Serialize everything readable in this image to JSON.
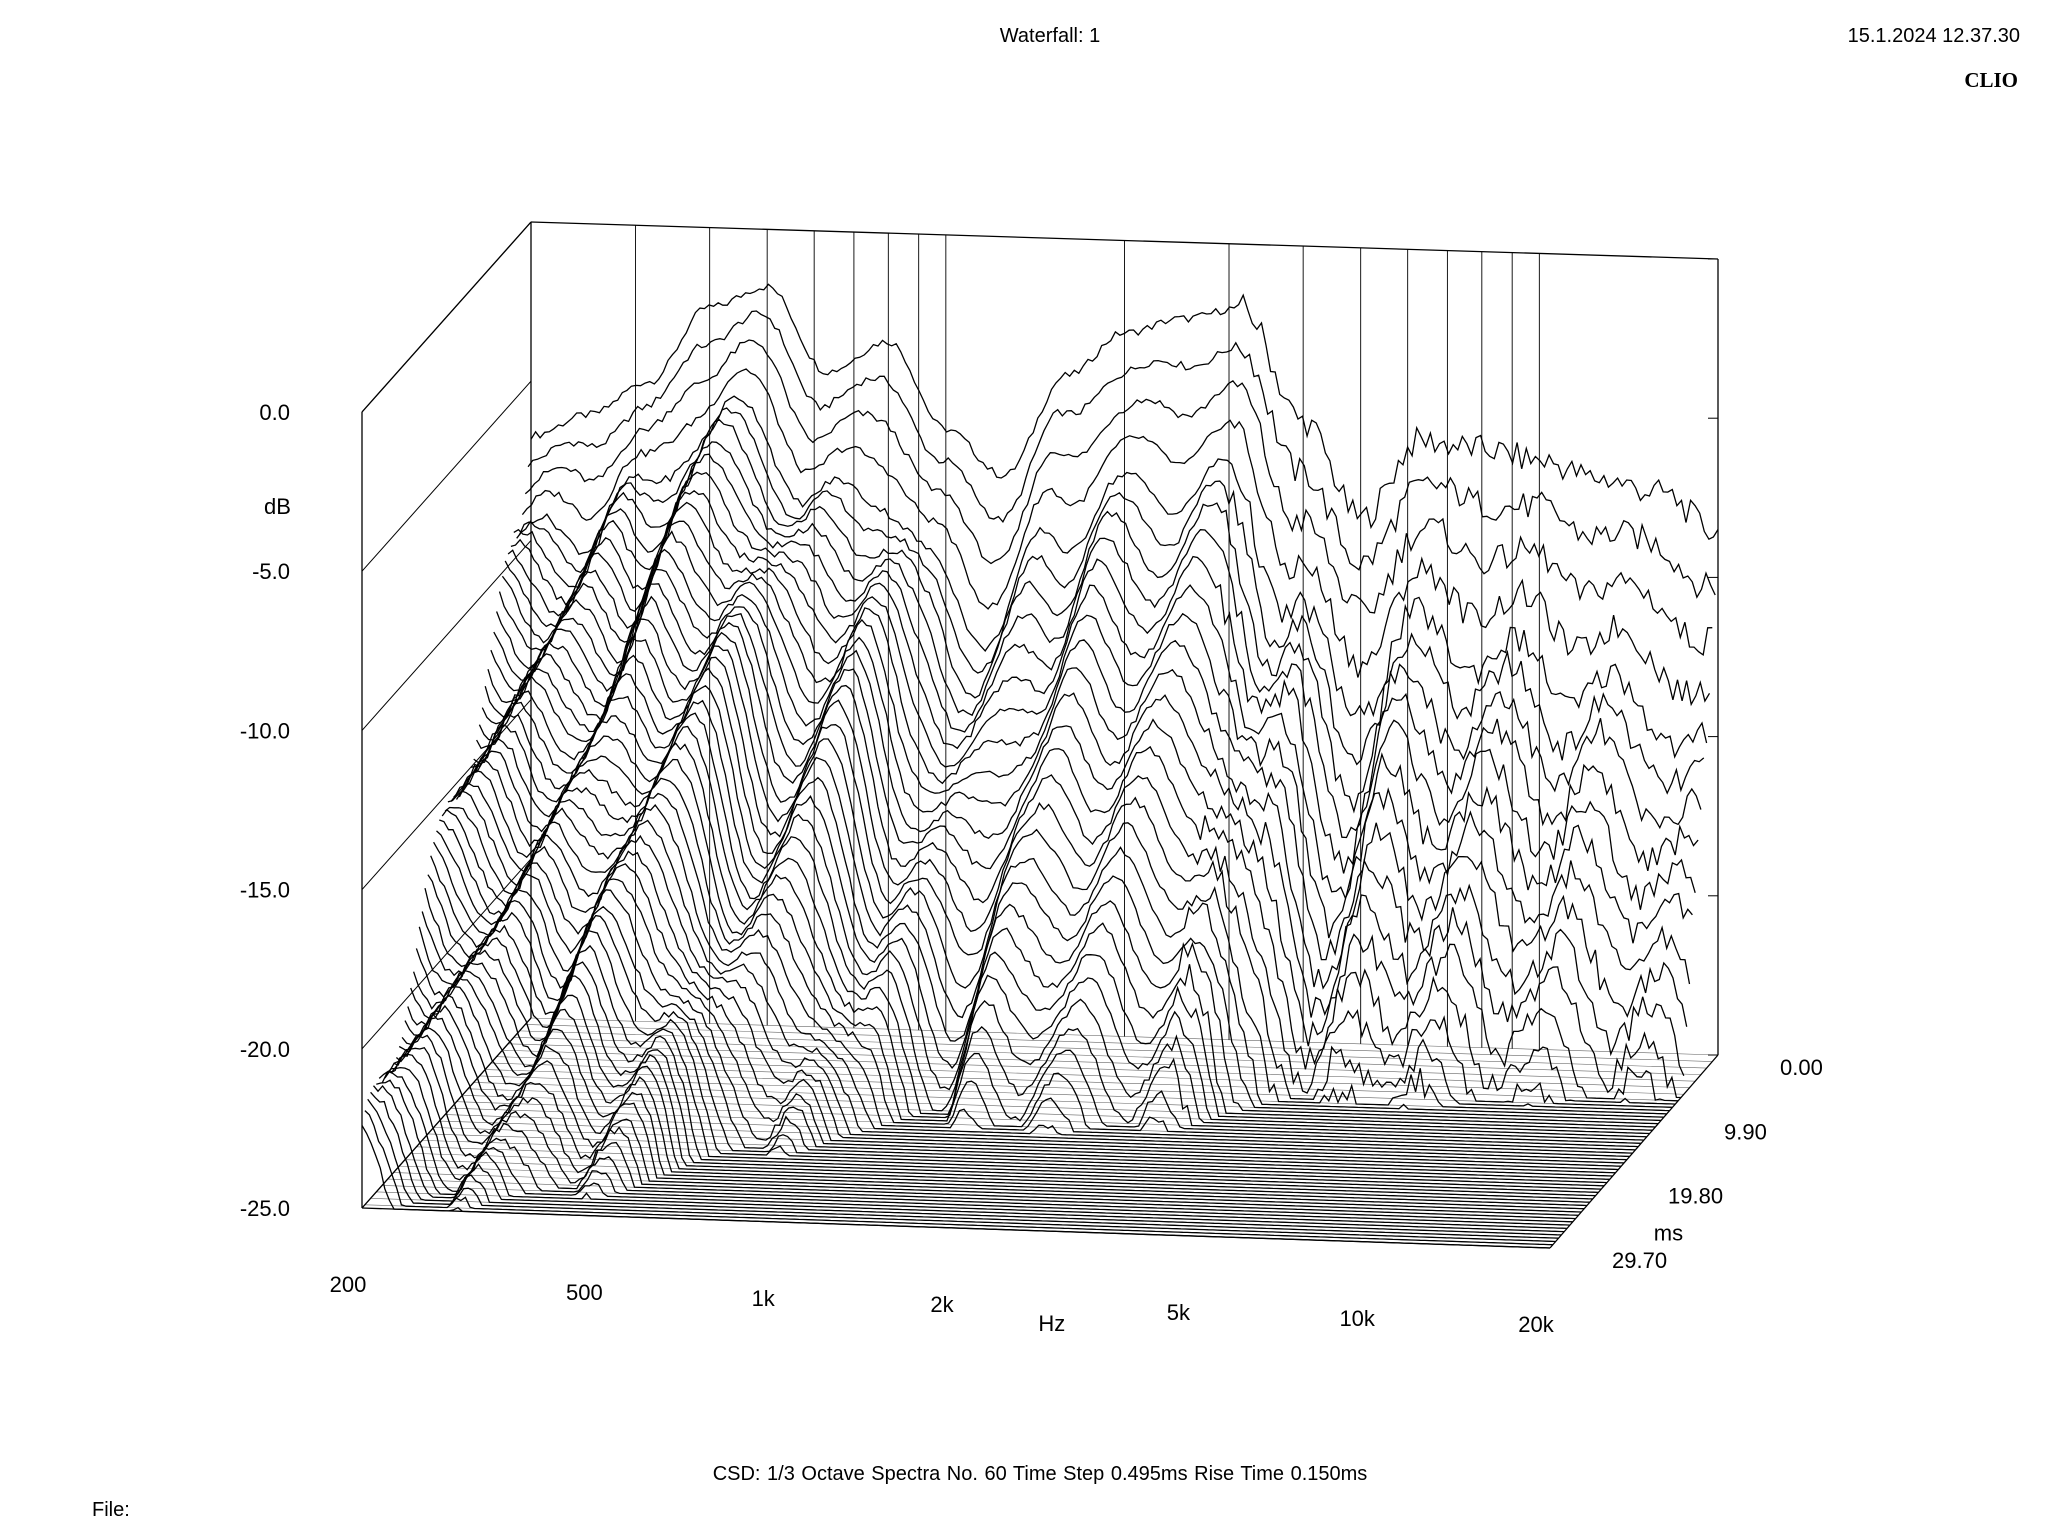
{
  "header": {
    "title": "Waterfall: 1",
    "timestamp": "15.1.2024 12.37.30",
    "brand": "CLIO"
  },
  "footer": {
    "settings": "CSD:   1/3 Octave   Spectra No. 60   Time Step 0.495ms   Rise Time 0.150ms",
    "file_label": "File:"
  },
  "chart_data": {
    "type": "waterfall",
    "analysis": "CSD",
    "smoothing": "1/3 Octave",
    "spectra_count": 60,
    "time_step": "0.495ms",
    "rise_time": "0.150ms",
    "x_axis": {
      "label": "Hz",
      "scale": "log",
      "range": [
        200,
        20000
      ],
      "ticks": [
        {
          "value": 200,
          "label": "200"
        },
        {
          "value": 500,
          "label": "500"
        },
        {
          "value": 1000,
          "label": "1k"
        },
        {
          "value": 2000,
          "label": "2k"
        },
        {
          "value": 5000,
          "label": "5k"
        },
        {
          "value": 10000,
          "label": "10k"
        },
        {
          "value": 20000,
          "label": "20k"
        }
      ]
    },
    "y_axis": {
      "label": "dB",
      "range": [
        -25,
        0
      ],
      "ticks": [
        {
          "value": 0,
          "label": "0.0"
        },
        {
          "value": -5,
          "label": "-5.0"
        },
        {
          "value": -10,
          "label": "-10.0"
        },
        {
          "value": -15,
          "label": "-15.0"
        },
        {
          "value": -20,
          "label": "-20.0"
        },
        {
          "value": -25,
          "label": "-25.0"
        }
      ]
    },
    "z_axis": {
      "label": "ms",
      "range": [
        0,
        29.7
      ],
      "ticks": [
        {
          "value": 0,
          "label": "0.00"
        },
        {
          "value": 9.9,
          "label": "9.90"
        },
        {
          "value": 19.8,
          "label": "19.80"
        },
        {
          "value": 29.7,
          "label": "29.70"
        }
      ]
    },
    "initial_spectrum_db": [
      {
        "hz": 200,
        "db": -6.7
      },
      {
        "hz": 250,
        "db": -6.0
      },
      {
        "hz": 315,
        "db": -4.9
      },
      {
        "hz": 400,
        "db": -2.5
      },
      {
        "hz": 500,
        "db": -1.8
      },
      {
        "hz": 630,
        "db": -4.4
      },
      {
        "hz": 800,
        "db": -3.4
      },
      {
        "hz": 1000,
        "db": -6.1
      },
      {
        "hz": 1250,
        "db": -7.5
      },
      {
        "hz": 1600,
        "db": -4.3
      },
      {
        "hz": 2000,
        "db": -2.9
      },
      {
        "hz": 2500,
        "db": -2.4
      },
      {
        "hz": 3150,
        "db": -2.0
      },
      {
        "hz": 4000,
        "db": -5.5
      },
      {
        "hz": 5000,
        "db": -8.5
      },
      {
        "hz": 6300,
        "db": -6.0
      },
      {
        "hz": 8000,
        "db": -6.2
      },
      {
        "hz": 10000,
        "db": -6.5
      },
      {
        "hz": 12500,
        "db": -7.0
      },
      {
        "hz": 16000,
        "db": -7.4
      },
      {
        "hz": 20000,
        "db": -8.6
      }
    ],
    "grid": true,
    "legend": "none"
  }
}
